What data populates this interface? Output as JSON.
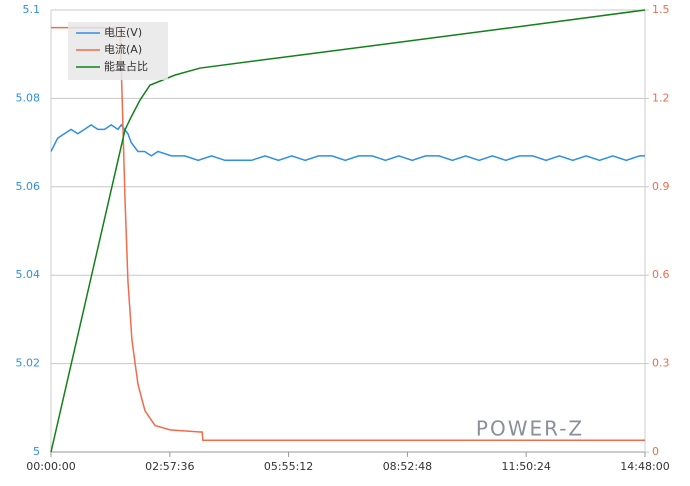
{
  "chart_data": {
    "type": "line",
    "legend": "top-left",
    "grid": true,
    "watermark": "POWER-Z",
    "xlim": [
      0,
      888
    ],
    "xticks": [
      {
        "value": 0,
        "label": "00:00:00"
      },
      {
        "value": 177.6,
        "label": "02:57:36"
      },
      {
        "value": 355.2,
        "label": "05:55:12"
      },
      {
        "value": 532.8,
        "label": "08:52:48"
      },
      {
        "value": 710.4,
        "label": "11:50:24"
      },
      {
        "value": 888,
        "label": "14:48:00"
      }
    ],
    "ylim": [
      5,
      5.1
    ],
    "yticks": [
      5,
      5.02,
      5.04,
      5.06,
      5.08,
      5.1
    ],
    "y2lim": [
      0,
      1.5
    ],
    "y2ticks": [
      0,
      0.3,
      0.6,
      0.9,
      1.2,
      1.5
    ],
    "series": [
      {
        "name": "电压(V)",
        "color": "#2e8fe6",
        "x": [
          0,
          10,
          20,
          30,
          40,
          50,
          60,
          70,
          80,
          90,
          100,
          105,
          110,
          115,
          120,
          130,
          140,
          150,
          160,
          180,
          200,
          220,
          240,
          260,
          280,
          300,
          320,
          340,
          360,
          380,
          400,
          420,
          440,
          460,
          480,
          500,
          520,
          540,
          560,
          580,
          600,
          620,
          640,
          660,
          680,
          700,
          720,
          740,
          760,
          780,
          800,
          820,
          840,
          860,
          880,
          888
        ],
        "values": [
          5.068,
          5.071,
          5.072,
          5.073,
          5.072,
          5.073,
          5.074,
          5.073,
          5.073,
          5.074,
          5.073,
          5.074,
          5.073,
          5.072,
          5.07,
          5.068,
          5.068,
          5.067,
          5.068,
          5.067,
          5.067,
          5.066,
          5.067,
          5.066,
          5.066,
          5.066,
          5.067,
          5.066,
          5.067,
          5.066,
          5.067,
          5.067,
          5.066,
          5.067,
          5.067,
          5.066,
          5.067,
          5.066,
          5.067,
          5.067,
          5.066,
          5.067,
          5.066,
          5.067,
          5.066,
          5.067,
          5.067,
          5.066,
          5.067,
          5.066,
          5.067,
          5.066,
          5.067,
          5.066,
          5.067,
          5.067
        ]
      },
      {
        "name": "电流(A)",
        "color": "#f26b4b",
        "axis": "y2",
        "x": [
          0,
          103,
          106,
          110.6,
          115,
          121,
          130,
          140.5,
          155.5,
          178,
          223,
          226,
          227,
          888
        ],
        "values": [
          1.44,
          1.44,
          1.23,
          0.86,
          0.58,
          0.38,
          0.23,
          0.14,
          0.09,
          0.075,
          0.068,
          0.068,
          0.04,
          0.04
        ]
      },
      {
        "name": "能量占比",
        "color": "#13811a",
        "axis": "y2",
        "x": [
          0,
          110.6,
          119,
          133,
          148,
          185,
          223,
          372,
          522,
          671,
          888
        ],
        "values": [
          0,
          1.093,
          1.133,
          1.194,
          1.245,
          1.279,
          1.303,
          1.347,
          1.391,
          1.435,
          1.5
        ]
      }
    ]
  }
}
